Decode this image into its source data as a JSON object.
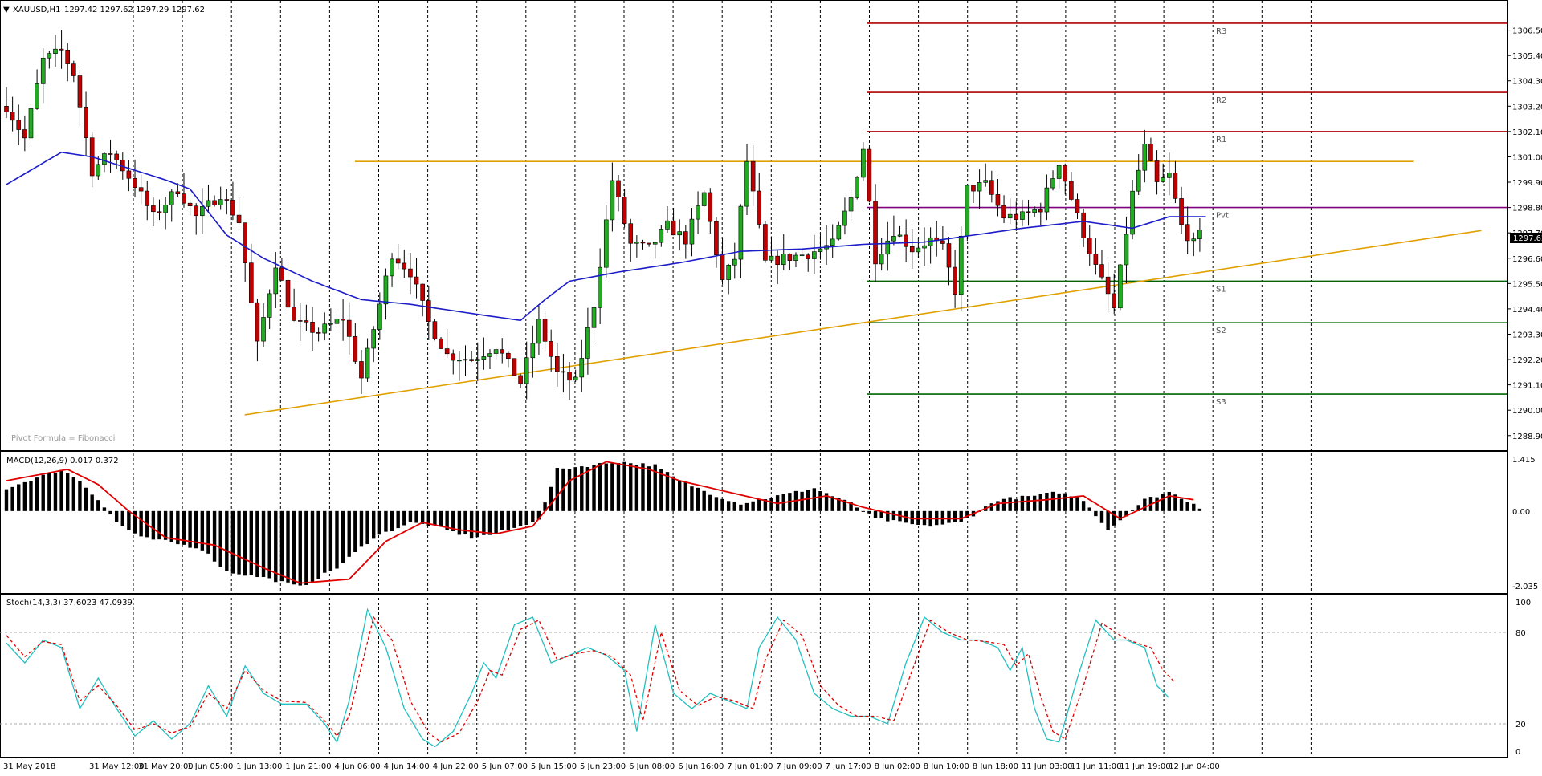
{
  "header": {
    "symbol_label": "XAUUSD,H1",
    "ohlc_label": "1297.42 1297.62 1297.29 1297.62"
  },
  "watermark": "Pivot Formula = Fibonacci",
  "current_price_label": "1297.62",
  "macd_header": "MACD(12,26,9) 0.017 0.372",
  "stoch_header": "Stoch(14,3,3) 37.6023 47.0939",
  "colors": {
    "bull": "#22aa22",
    "bear": "#c00000",
    "ma": "#1c1cc8",
    "resistance": "#b00000",
    "support": "#006400",
    "pivot": "#800080",
    "trend": "#e0a000",
    "signal": "#e00000",
    "stoch_main": "#20c0c0",
    "stoch_signal": "#e00000",
    "grid": "#000000"
  },
  "chart_data": {
    "type": "candlestick",
    "symbol": "XAUUSD",
    "timeframe": "H1",
    "price_axis": {
      "ylim": [
        1288.3,
        1307.6
      ],
      "ticks": [
        "1306.50",
        "1305.40",
        "1304.30",
        "1303.20",
        "1302.10",
        "1301.00",
        "1299.90",
        "1298.80",
        "1297.70",
        "1296.60",
        "1295.50",
        "1294.40",
        "1293.30",
        "1292.20",
        "1291.10",
        "1290.00",
        "1288.90"
      ]
    },
    "time_axis": {
      "labels": [
        "31 May 2018",
        "31 May 12:00",
        "31 May 20:00",
        "1 Jun 05:00",
        "1 Jun 13:00",
        "1 Jun 21:00",
        "4 Jun 06:00",
        "4 Jun 14:00",
        "4 Jun 22:00",
        "5 Jun 07:00",
        "5 Jun 15:00",
        "5 Jun 23:00",
        "6 Jun 08:00",
        "6 Jun 16:00",
        "7 Jun 01:00",
        "7 Jun 09:00",
        "7 Jun 17:00",
        "8 Jun 02:00",
        "8 Jun 10:00",
        "8 Jun 18:00",
        "11 Jun 03:00",
        "11 Jun 11:00",
        "11 Jun 19:00",
        "12 Jun 04:00"
      ]
    },
    "ohlc_anchors": [
      [
        0,
        1303.2
      ],
      [
        3,
        1301.8
      ],
      [
        6,
        1305.2
      ],
      [
        9,
        1305.6
      ],
      [
        11,
        1304.6
      ],
      [
        14,
        1300.4
      ],
      [
        17,
        1301.2
      ],
      [
        21,
        1299.8
      ],
      [
        24,
        1298.4
      ],
      [
        28,
        1299.6
      ],
      [
        31,
        1298.4
      ],
      [
        35,
        1299.4
      ],
      [
        38,
        1298.2
      ],
      [
        41,
        1292.8
      ],
      [
        44,
        1296.4
      ],
      [
        47,
        1293.8
      ],
      [
        51,
        1293.4
      ],
      [
        55,
        1294.0
      ],
      [
        58,
        1291.4
      ],
      [
        61,
        1294.6
      ],
      [
        63,
        1296.8
      ],
      [
        66,
        1296.0
      ],
      [
        69,
        1293.8
      ],
      [
        72,
        1292.4
      ],
      [
        76,
        1292.2
      ],
      [
        80,
        1292.8
      ],
      [
        84,
        1291.2
      ],
      [
        87,
        1293.8
      ],
      [
        90,
        1291.6
      ],
      [
        93,
        1291.2
      ],
      [
        96,
        1294.6
      ],
      [
        99,
        1300.0
      ],
      [
        102,
        1297.2
      ],
      [
        105,
        1297.0
      ],
      [
        108,
        1298.0
      ],
      [
        111,
        1297.4
      ],
      [
        114,
        1299.4
      ],
      [
        117,
        1295.6
      ],
      [
        119,
        1296.6
      ],
      [
        121,
        1300.8
      ],
      [
        124,
        1296.4
      ],
      [
        127,
        1296.6
      ],
      [
        131,
        1296.8
      ],
      [
        135,
        1297.2
      ],
      [
        138,
        1299.2
      ],
      [
        140,
        1301.4
      ],
      [
        142,
        1296.6
      ],
      [
        145,
        1297.8
      ],
      [
        148,
        1297.0
      ],
      [
        151,
        1297.4
      ],
      [
        153,
        1297.0
      ],
      [
        155,
        1295.2
      ],
      [
        157,
        1299.6
      ],
      [
        160,
        1299.8
      ],
      [
        163,
        1298.4
      ],
      [
        166,
        1298.4
      ],
      [
        169,
        1298.8
      ],
      [
        172,
        1300.8
      ],
      [
        175,
        1298.4
      ],
      [
        178,
        1296.2
      ],
      [
        181,
        1294.4
      ],
      [
        184,
        1299.4
      ],
      [
        186,
        1301.4
      ],
      [
        188,
        1299.8
      ],
      [
        190,
        1300.2
      ],
      [
        192,
        1298.0
      ],
      [
        194,
        1297.2
      ],
      [
        195,
        1297.6
      ]
    ],
    "moving_average_anchors": [
      [
        0,
        1299.8
      ],
      [
        9,
        1301.2
      ],
      [
        14,
        1301.0
      ],
      [
        20,
        1300.5
      ],
      [
        26,
        1300.0
      ],
      [
        30,
        1299.6
      ],
      [
        36,
        1297.6
      ],
      [
        42,
        1296.6
      ],
      [
        50,
        1295.6
      ],
      [
        58,
        1294.8
      ],
      [
        66,
        1294.6
      ],
      [
        76,
        1294.2
      ],
      [
        84,
        1293.9
      ],
      [
        88,
        1294.8
      ],
      [
        92,
        1295.6
      ],
      [
        100,
        1296.0
      ],
      [
        110,
        1296.4
      ],
      [
        120,
        1296.9
      ],
      [
        130,
        1297.0
      ],
      [
        140,
        1297.2
      ],
      [
        150,
        1297.3
      ],
      [
        158,
        1297.6
      ],
      [
        166,
        1297.9
      ],
      [
        176,
        1298.2
      ],
      [
        184,
        1297.9
      ],
      [
        190,
        1298.4
      ],
      [
        196,
        1298.4
      ]
    ],
    "pivot_levels": [
      {
        "name": "R3",
        "value": 1306.8
      },
      {
        "name": "R2",
        "value": 1303.8
      },
      {
        "name": "R1",
        "value": 1302.1
      },
      {
        "name": "Pvt",
        "value": 1298.8
      },
      {
        "name": "S1",
        "value": 1295.6
      },
      {
        "name": "S2",
        "value": 1293.8
      },
      {
        "name": "S3",
        "value": 1290.7
      }
    ],
    "trend_lines": [
      {
        "from": [
          53,
          1300.8
        ],
        "to": [
          230,
          1300.8
        ]
      },
      {
        "from": [
          35,
          1289.8
        ],
        "to": [
          241,
          1297.8
        ]
      }
    ],
    "macd": {
      "ylim": [
        -2.1,
        1.5
      ],
      "ticks": [
        "1.415",
        "0.00",
        "-2.035"
      ],
      "histogram_anchors": [
        [
          0,
          0.6
        ],
        [
          9,
          1.1
        ],
        [
          12,
          0.8
        ],
        [
          15,
          0.3
        ],
        [
          18,
          -0.3
        ],
        [
          22,
          -0.7
        ],
        [
          26,
          -0.8
        ],
        [
          32,
          -1.0
        ],
        [
          36,
          -1.6
        ],
        [
          42,
          -1.75
        ],
        [
          48,
          -2.0
        ],
        [
          54,
          -1.5
        ],
        [
          60,
          -0.7
        ],
        [
          66,
          -0.3
        ],
        [
          70,
          -0.4
        ],
        [
          76,
          -0.7
        ],
        [
          80,
          -0.6
        ],
        [
          84,
          -0.4
        ],
        [
          87,
          -0.2
        ],
        [
          88,
          0.2
        ],
        [
          90,
          1.1
        ],
        [
          100,
          1.3
        ],
        [
          106,
          1.2
        ],
        [
          110,
          0.8
        ],
        [
          116,
          0.4
        ],
        [
          120,
          0.2
        ],
        [
          126,
          0.4
        ],
        [
          132,
          0.6
        ],
        [
          138,
          0.2
        ],
        [
          142,
          -0.2
        ],
        [
          150,
          -0.4
        ],
        [
          156,
          -0.3
        ],
        [
          162,
          0.3
        ],
        [
          168,
          0.4
        ],
        [
          172,
          0.5
        ],
        [
          176,
          0.3
        ],
        [
          180,
          -0.5
        ],
        [
          183,
          -0.1
        ],
        [
          186,
          0.3
        ],
        [
          190,
          0.5
        ],
        [
          194,
          0.2
        ],
        [
          196,
          0.0
        ]
      ],
      "signal_anchors": [
        [
          0,
          0.8
        ],
        [
          10,
          1.1
        ],
        [
          15,
          0.7
        ],
        [
          20,
          0.0
        ],
        [
          26,
          -0.7
        ],
        [
          34,
          -0.9
        ],
        [
          42,
          -1.5
        ],
        [
          48,
          -1.9
        ],
        [
          56,
          -1.8
        ],
        [
          62,
          -0.8
        ],
        [
          68,
          -0.3
        ],
        [
          74,
          -0.5
        ],
        [
          80,
          -0.6
        ],
        [
          86,
          -0.4
        ],
        [
          92,
          0.8
        ],
        [
          98,
          1.3
        ],
        [
          105,
          1.1
        ],
        [
          110,
          0.8
        ],
        [
          118,
          0.5
        ],
        [
          126,
          0.2
        ],
        [
          134,
          0.4
        ],
        [
          140,
          0.1
        ],
        [
          148,
          -0.2
        ],
        [
          156,
          -0.2
        ],
        [
          162,
          0.2
        ],
        [
          170,
          0.3
        ],
        [
          176,
          0.4
        ],
        [
          182,
          -0.2
        ],
        [
          186,
          0.1
        ],
        [
          190,
          0.4
        ],
        [
          194,
          0.3
        ]
      ]
    },
    "stochastic": {
      "ylim": [
        0,
        100
      ],
      "ticks": [
        "100",
        "80",
        "20",
        "0"
      ],
      "k_anchors": [
        [
          0,
          73
        ],
        [
          3,
          60
        ],
        [
          6,
          75
        ],
        [
          9,
          70
        ],
        [
          12,
          30
        ],
        [
          15,
          50
        ],
        [
          18,
          30
        ],
        [
          21,
          12
        ],
        [
          24,
          22
        ],
        [
          27,
          10
        ],
        [
          30,
          20
        ],
        [
          33,
          45
        ],
        [
          36,
          25
        ],
        [
          39,
          58
        ],
        [
          42,
          40
        ],
        [
          45,
          33
        ],
        [
          49,
          33
        ],
        [
          52,
          20
        ],
        [
          54,
          8
        ],
        [
          56,
          35
        ],
        [
          59,
          95
        ],
        [
          62,
          70
        ],
        [
          65,
          30
        ],
        [
          68,
          10
        ],
        [
          70,
          5
        ],
        [
          73,
          15
        ],
        [
          76,
          40
        ],
        [
          78,
          60
        ],
        [
          80,
          50
        ],
        [
          83,
          85
        ],
        [
          86,
          90
        ],
        [
          89,
          60
        ],
        [
          92,
          65
        ],
        [
          95,
          70
        ],
        [
          98,
          65
        ],
        [
          101,
          55
        ],
        [
          103,
          15
        ],
        [
          106,
          85
        ],
        [
          109,
          40
        ],
        [
          112,
          30
        ],
        [
          115,
          40
        ],
        [
          118,
          35
        ],
        [
          121,
          30
        ],
        [
          123,
          70
        ],
        [
          126,
          90
        ],
        [
          129,
          75
        ],
        [
          132,
          40
        ],
        [
          135,
          30
        ],
        [
          138,
          25
        ],
        [
          141,
          25
        ],
        [
          144,
          20
        ],
        [
          147,
          60
        ],
        [
          150,
          90
        ],
        [
          153,
          80
        ],
        [
          156,
          75
        ],
        [
          159,
          75
        ],
        [
          162,
          70
        ],
        [
          164,
          55
        ],
        [
          166,
          70
        ],
        [
          168,
          30
        ],
        [
          170,
          10
        ],
        [
          172,
          8
        ],
        [
          175,
          50
        ],
        [
          178,
          88
        ],
        [
          181,
          75
        ],
        [
          183,
          75
        ],
        [
          186,
          70
        ],
        [
          188,
          45
        ],
        [
          190,
          37
        ]
      ],
      "d_anchors": [
        [
          0,
          78
        ],
        [
          3,
          64
        ],
        [
          6,
          74
        ],
        [
          9,
          72
        ],
        [
          12,
          35
        ],
        [
          15,
          45
        ],
        [
          18,
          32
        ],
        [
          21,
          16
        ],
        [
          24,
          20
        ],
        [
          27,
          14
        ],
        [
          30,
          18
        ],
        [
          33,
          40
        ],
        [
          36,
          30
        ],
        [
          39,
          55
        ],
        [
          42,
          42
        ],
        [
          45,
          35
        ],
        [
          49,
          34
        ],
        [
          52,
          22
        ],
        [
          54,
          12
        ],
        [
          56,
          25
        ],
        [
          60,
          90
        ],
        [
          63,
          75
        ],
        [
          66,
          35
        ],
        [
          69,
          14
        ],
        [
          71,
          8
        ],
        [
          74,
          14
        ],
        [
          77,
          35
        ],
        [
          79,
          55
        ],
        [
          81,
          52
        ],
        [
          84,
          82
        ],
        [
          87,
          88
        ],
        [
          90,
          62
        ],
        [
          93,
          66
        ],
        [
          96,
          68
        ],
        [
          99,
          64
        ],
        [
          102,
          52
        ],
        [
          104,
          22
        ],
        [
          107,
          80
        ],
        [
          110,
          42
        ],
        [
          113,
          32
        ],
        [
          116,
          38
        ],
        [
          119,
          35
        ],
        [
          122,
          30
        ],
        [
          124,
          62
        ],
        [
          127,
          88
        ],
        [
          130,
          78
        ],
        [
          133,
          45
        ],
        [
          136,
          32
        ],
        [
          139,
          25
        ],
        [
          142,
          25
        ],
        [
          145,
          22
        ],
        [
          148,
          55
        ],
        [
          151,
          88
        ],
        [
          154,
          80
        ],
        [
          157,
          75
        ],
        [
          160,
          74
        ],
        [
          163,
          72
        ],
        [
          165,
          58
        ],
        [
          167,
          66
        ],
        [
          169,
          38
        ],
        [
          171,
          15
        ],
        [
          173,
          10
        ],
        [
          176,
          45
        ],
        [
          179,
          86
        ],
        [
          182,
          78
        ],
        [
          184,
          74
        ],
        [
          187,
          70
        ],
        [
          189,
          55
        ],
        [
          191,
          47
        ]
      ]
    }
  }
}
